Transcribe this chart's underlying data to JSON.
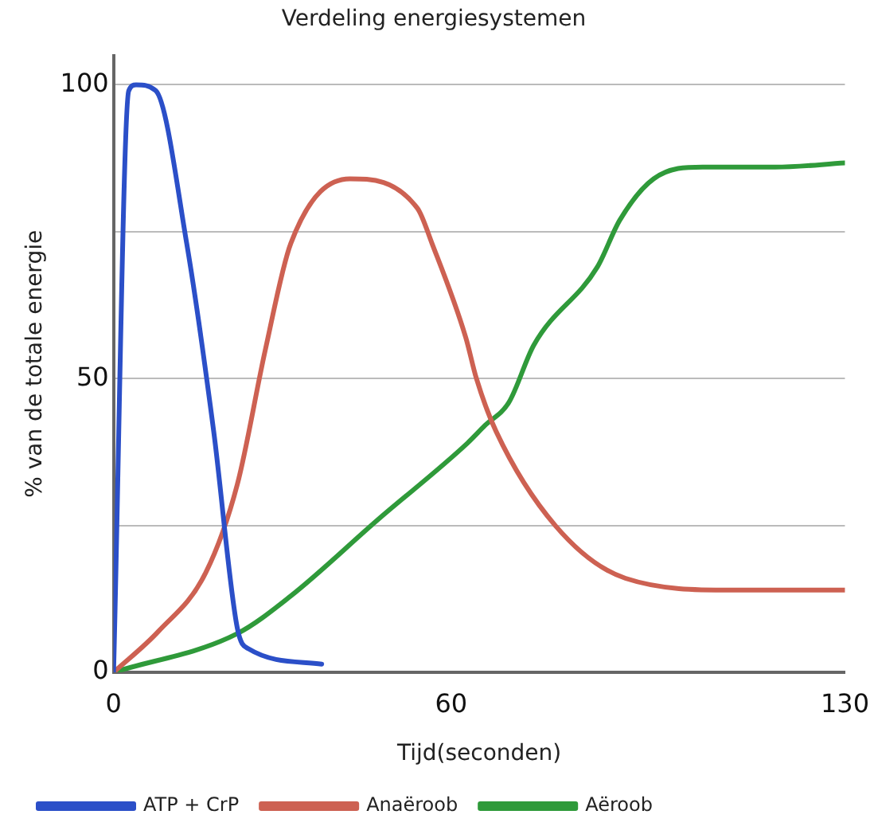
{
  "chart_data": {
    "type": "line",
    "title": "Verdeling energiesystemen",
    "xlabel": "Tijd(seconden)",
    "ylabel": "% van de totale energie",
    "xlim": [
      0,
      130
    ],
    "xticks": [
      0,
      60,
      130
    ],
    "ylim": [
      0,
      105
    ],
    "yticks": [
      0,
      {
        "value": 25,
        "label": null
      },
      50,
      {
        "value": 75,
        "label": null
      },
      100
    ],
    "grid": "y",
    "legend": "bottom",
    "marker": "none",
    "line_style": "solid",
    "series": [
      {
        "name": "ATP + CrP",
        "color": "#2b4fc8",
        "x": [
          0,
          2.7,
          4,
          7.5,
          13,
          17.8,
          22,
          24,
          37
        ],
        "values": [
          0,
          99,
          100,
          99,
          73,
          41,
          7.5,
          4,
          1.4
        ]
      },
      {
        "name": "Anaëroob",
        "color": "#cd6152",
        "x": [
          0,
          8,
          16.4,
          22,
          27,
          31.5,
          42,
          54,
          56.6,
          62.6,
          64.5,
          68,
          78.5,
          91,
          110,
          130
        ],
        "values": [
          0,
          7,
          17,
          32,
          55,
          73,
          84,
          79,
          73,
          57,
          50,
          41,
          25,
          16,
          14,
          14
        ]
      },
      {
        "name": "Aëroob",
        "color": "#2f9a3a",
        "x": [
          0,
          22,
          31.5,
          47,
          62.9,
          66,
          70.3,
          74.7,
          86,
          90,
          96,
          104.7,
          117.6,
          130
        ],
        "values": [
          0,
          6.6,
          13,
          26,
          39,
          42,
          46,
          55.7,
          69,
          77,
          84,
          86,
          86,
          86.7
        ]
      }
    ]
  }
}
